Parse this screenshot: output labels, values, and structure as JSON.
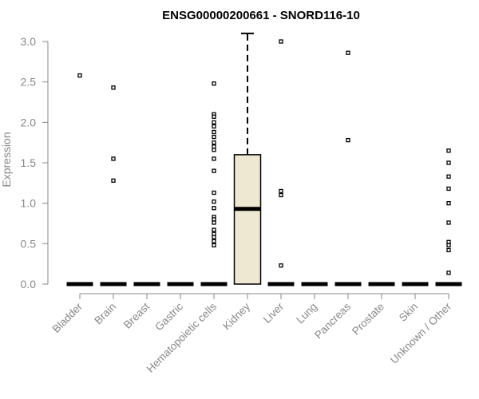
{
  "chart_data": {
    "type": "box",
    "title": "ENSG00000200661 - SNORD116-10",
    "xlabel": "",
    "ylabel": "Expression",
    "ylim": [
      0,
      3.0
    ],
    "yticks": [
      "0.0",
      "0.5",
      "1.0",
      "1.5",
      "2.0",
      "2.5",
      "3.0"
    ],
    "grid": false,
    "legend": "none",
    "box_fill": "#ede8d1",
    "categories": [
      "Bladder",
      "Brain",
      "Breast",
      "Gastric",
      "Hematopoietic cells",
      "Kidney",
      "Liver",
      "Lung",
      "Pancreas",
      "Prostate",
      "Skin",
      "Unknown / Other"
    ],
    "boxes": [
      {
        "category": "Bladder",
        "q1": 0,
        "median": 0,
        "q3": 0,
        "whisker_low": 0,
        "whisker_high": 0,
        "outliers": [
          2.58
        ]
      },
      {
        "category": "Brain",
        "q1": 0,
        "median": 0,
        "q3": 0,
        "whisker_low": 0,
        "whisker_high": 0,
        "outliers": [
          2.43,
          1.55,
          1.28
        ]
      },
      {
        "category": "Breast",
        "q1": 0,
        "median": 0,
        "q3": 0,
        "whisker_low": 0,
        "whisker_high": 0,
        "outliers": []
      },
      {
        "category": "Gastric",
        "q1": 0,
        "median": 0,
        "q3": 0,
        "whisker_low": 0,
        "whisker_high": 0,
        "outliers": []
      },
      {
        "category": "Hematopoietic cells",
        "q1": 0,
        "median": 0,
        "q3": 0,
        "whisker_low": 0,
        "whisker_high": 0,
        "outliers": [
          2.48,
          2.1,
          2.07,
          2.0,
          1.95,
          1.88,
          1.82,
          1.75,
          1.7,
          1.66,
          1.55,
          1.4,
          1.13,
          1.02,
          0.94,
          0.83,
          0.8,
          0.76,
          0.67,
          0.62,
          0.58,
          0.53,
          0.48
        ]
      },
      {
        "category": "Kidney",
        "q1": 0,
        "median": 0.93,
        "q3": 1.6,
        "whisker_low": 0,
        "whisker_high": 3.1,
        "outliers": []
      },
      {
        "category": "Liver",
        "q1": 0,
        "median": 0,
        "q3": 0,
        "whisker_low": 0,
        "whisker_high": 0,
        "outliers": [
          3.0,
          1.15,
          1.1,
          0.23
        ]
      },
      {
        "category": "Lung",
        "q1": 0,
        "median": 0,
        "q3": 0,
        "whisker_low": 0,
        "whisker_high": 0,
        "outliers": []
      },
      {
        "category": "Pancreas",
        "q1": 0,
        "median": 0,
        "q3": 0,
        "whisker_low": 0,
        "whisker_high": 0,
        "outliers": [
          2.86,
          1.78
        ]
      },
      {
        "category": "Prostate",
        "q1": 0,
        "median": 0,
        "q3": 0,
        "whisker_low": 0,
        "whisker_high": 0,
        "outliers": []
      },
      {
        "category": "Skin",
        "q1": 0,
        "median": 0,
        "q3": 0,
        "whisker_low": 0,
        "whisker_high": 0,
        "outliers": []
      },
      {
        "category": "Unknown / Other",
        "q1": 0,
        "median": 0,
        "q3": 0,
        "whisker_low": 0,
        "whisker_high": 0,
        "outliers": [
          1.65,
          1.5,
          1.33,
          1.18,
          1.0,
          0.76,
          0.52,
          0.48,
          0.42,
          0.14
        ]
      }
    ]
  }
}
